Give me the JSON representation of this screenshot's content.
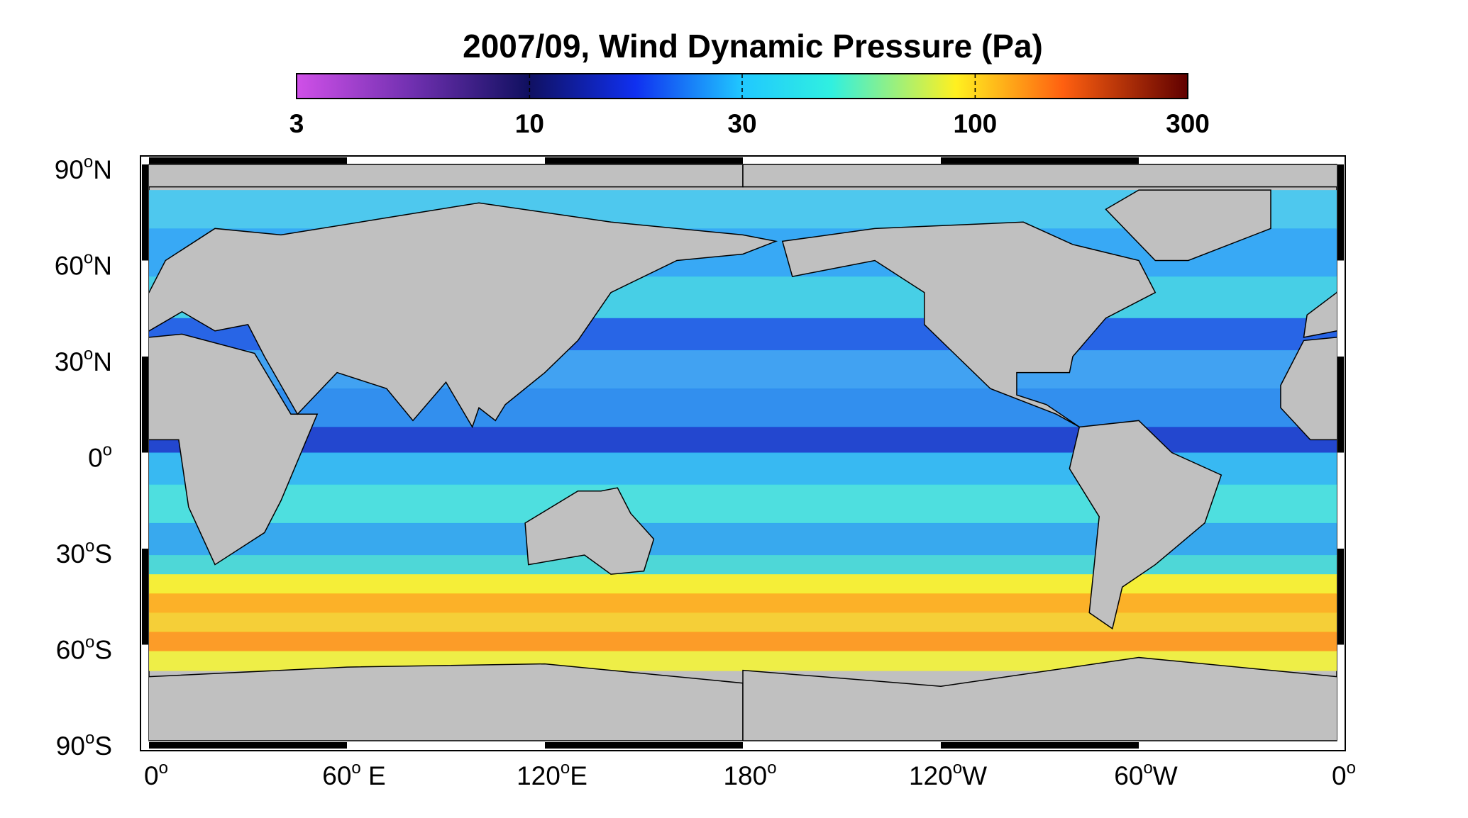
{
  "title": "2007/09, Wind Dynamic Pressure (Pa)",
  "colorbar": {
    "scale": "log",
    "lim": [
      3,
      300
    ],
    "ticks": [
      3,
      10,
      30,
      100,
      300
    ]
  },
  "lat_labels": [
    {
      "num": "90",
      "sup": "o",
      "hemi": "N"
    },
    {
      "num": "60",
      "sup": "o",
      "hemi": "N"
    },
    {
      "num": "30",
      "sup": "o",
      "hemi": "N"
    },
    {
      "num": "0",
      "sup": "o",
      "hemi": ""
    },
    {
      "num": "30",
      "sup": "o",
      "hemi": "S"
    },
    {
      "num": "60",
      "sup": "o",
      "hemi": "S"
    },
    {
      "num": "90",
      "sup": "o",
      "hemi": "S"
    }
  ],
  "lon_labels": [
    {
      "num": "0",
      "sup": "o",
      "hemi": ""
    },
    {
      "num": "60",
      "sup": "o",
      "hemi": " E"
    },
    {
      "num": "120",
      "sup": "o",
      "hemi": "E"
    },
    {
      "num": "180",
      "sup": "o",
      "hemi": ""
    },
    {
      "num": "120",
      "sup": "o",
      "hemi": "W"
    },
    {
      "num": "60",
      "sup": "o",
      "hemi": "W"
    },
    {
      "num": "0",
      "sup": "o",
      "hemi": ""
    }
  ]
}
